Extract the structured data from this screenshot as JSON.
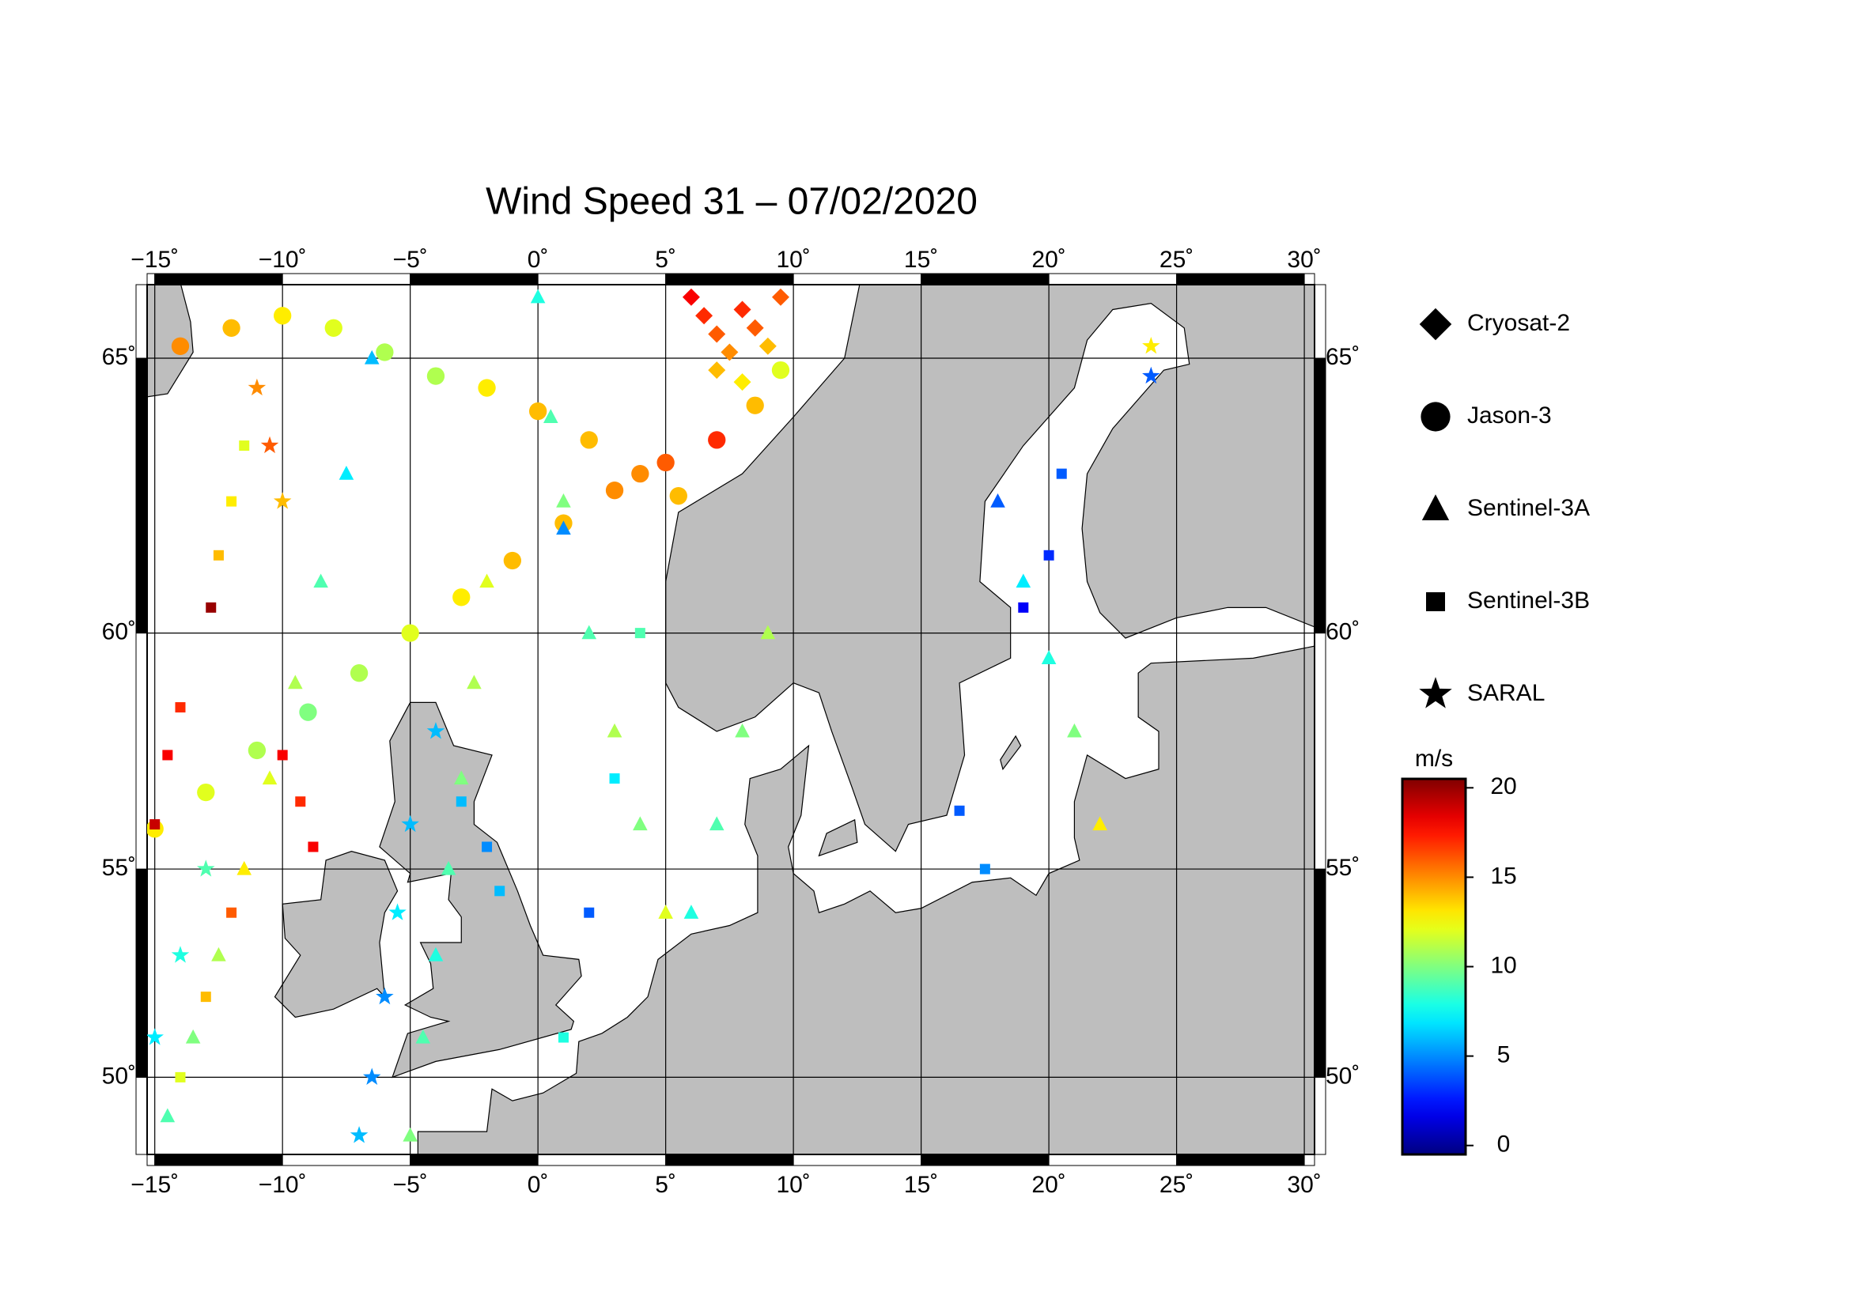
{
  "chart_data": {
    "type": "scatter",
    "title": "Wind Speed 31 – 07/02/2020",
    "projection": "mercator",
    "xlim": [
      -15.3,
      30.4
    ],
    "ylim": [
      48.0,
      66.2
    ],
    "xticks": [
      {
        "value": -15,
        "label": "−15˚"
      },
      {
        "value": -10,
        "label": "−10˚"
      },
      {
        "value": -5,
        "label": "−5˚"
      },
      {
        "value": 0,
        "label": "0˚"
      },
      {
        "value": 5,
        "label": "5˚"
      },
      {
        "value": 10,
        "label": "10˚"
      },
      {
        "value": 15,
        "label": "15˚"
      },
      {
        "value": 20,
        "label": "20˚"
      },
      {
        "value": 25,
        "label": "25˚"
      },
      {
        "value": 30,
        "label": "30˚"
      }
    ],
    "yticks": [
      {
        "value": 50,
        "label": "50˚"
      },
      {
        "value": 55,
        "label": "55˚"
      },
      {
        "value": 60,
        "label": "60˚"
      },
      {
        "value": 65,
        "label": "65˚"
      }
    ],
    "grid": true,
    "colorbar": {
      "label": "m/s",
      "colormap": "jet",
      "lim": [
        -0.5,
        20.5
      ],
      "ticks": [
        0,
        5,
        10,
        15,
        20
      ]
    },
    "series": [
      {
        "name": "Cryosat-2",
        "marker": "diamond",
        "x": [
          6,
          6.5,
          7,
          7.5,
          8,
          8.5,
          9,
          9.5,
          7,
          8
        ],
        "y": [
          66,
          65.7,
          65.4,
          65.1,
          65.8,
          65.5,
          65.2,
          66,
          64.8,
          64.6
        ],
        "values": [
          18,
          17,
          16,
          15,
          17,
          16,
          14,
          16,
          14,
          13
        ]
      },
      {
        "name": "Jason-3",
        "marker": "circle",
        "x": [
          -15,
          -13,
          -11,
          -9,
          -7,
          -5,
          -3,
          -1,
          1,
          3,
          5,
          7,
          8.5,
          9.5,
          -14,
          -12,
          -10,
          -8,
          -6,
          -4,
          -2,
          0,
          2,
          4,
          5.5
        ],
        "y": [
          55.9,
          56.7,
          57.6,
          58.4,
          59.2,
          60.0,
          60.7,
          61.4,
          62.1,
          62.7,
          63.2,
          63.6,
          64.2,
          64.8,
          65.2,
          65.5,
          65.7,
          65.5,
          65.1,
          64.7,
          64.5,
          64.1,
          63.6,
          63.0,
          62.6
        ],
        "values": [
          13,
          12,
          11,
          10,
          11,
          12,
          13,
          14,
          14,
          15,
          16,
          17,
          14,
          12,
          15,
          14,
          13,
          12,
          11,
          11,
          13,
          14,
          14,
          15,
          14
        ]
      },
      {
        "name": "Sentinel-3A",
        "marker": "triangle",
        "x": [
          -14.5,
          -13.5,
          -12.5,
          -11.5,
          -10.5,
          -9.5,
          -8.5,
          -7.5,
          -6.5,
          -5,
          -4.5,
          -4,
          -3.5,
          -3,
          -2.5,
          -2,
          1,
          2,
          3,
          4,
          5,
          0,
          0.5,
          1,
          6,
          7,
          8,
          9,
          18,
          19,
          20,
          21,
          22
        ],
        "y": [
          49,
          51,
          53,
          55,
          57,
          59,
          61,
          63,
          65,
          48.5,
          51,
          53,
          55,
          57,
          59,
          61,
          62,
          60,
          58,
          56,
          54,
          66,
          64,
          62.5,
          54,
          56,
          58,
          60,
          62.5,
          61,
          59.5,
          58,
          56
        ],
        "values": [
          9,
          10,
          11,
          13,
          12,
          11,
          9,
          7,
          6,
          10,
          9,
          8,
          9,
          10,
          11,
          12,
          5,
          9,
          11,
          10,
          12,
          8,
          9,
          10,
          8,
          9,
          10,
          11,
          4,
          7,
          8,
          10,
          13
        ]
      },
      {
        "name": "Sentinel-3B",
        "marker": "square",
        "x": [
          -12.8,
          -12.5,
          -12,
          -11.5,
          -10,
          -9.3,
          -8.8,
          -3,
          -2,
          -1.5,
          4,
          3,
          2,
          1,
          16.5,
          17.5,
          20.5,
          20,
          19,
          -15,
          -14.5,
          -14,
          -14,
          -13,
          -12
        ],
        "y": [
          60.5,
          61.5,
          62.5,
          63.5,
          57.5,
          56.5,
          55.5,
          56.5,
          55.5,
          54.5,
          60,
          57,
          54,
          51,
          56.3,
          55,
          63,
          61.5,
          60.5,
          56,
          57.5,
          58.5,
          50,
          52,
          54
        ],
        "values": [
          20,
          14,
          13,
          12,
          18,
          17,
          18,
          6,
          5,
          6,
          9,
          7,
          4,
          8,
          4,
          5,
          4,
          3,
          2,
          19,
          18,
          17,
          12,
          14,
          16
        ]
      },
      {
        "name": "SARAL",
        "marker": "star",
        "x": [
          -15,
          -14,
          -13,
          -7,
          -6.5,
          -6,
          -5.5,
          -5,
          -4,
          24,
          24,
          -11,
          -10.5,
          -10
        ],
        "y": [
          51,
          53,
          55,
          48.5,
          50,
          52,
          54,
          56,
          58,
          65.2,
          64.7,
          64.5,
          63.5,
          62.5
        ],
        "values": [
          7,
          8,
          9,
          6,
          5,
          5,
          7,
          6,
          6,
          13,
          4,
          15,
          16,
          14
        ]
      }
    ]
  }
}
